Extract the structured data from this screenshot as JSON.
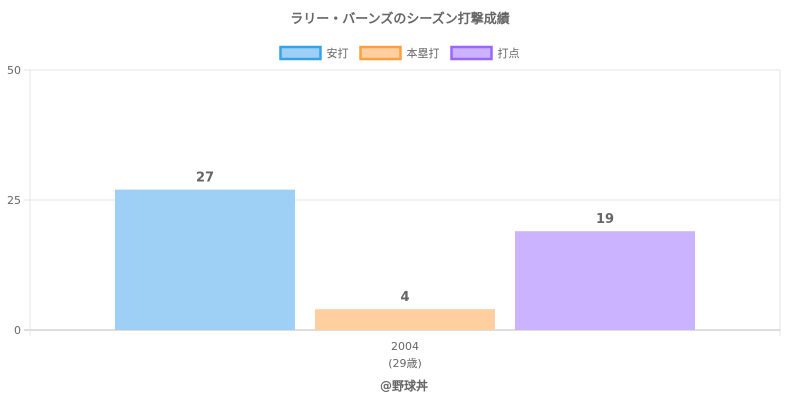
{
  "chart_data": {
    "type": "bar",
    "title": "ラリー・バーンズのシーズン打撃成績",
    "categories": [
      "2004"
    ],
    "category_sublabels": [
      "(29歳)"
    ],
    "ylim": [
      0,
      50
    ],
    "yticks": [
      0,
      25,
      50
    ],
    "grid": true,
    "legend_position": "top",
    "series": [
      {
        "name": "安打",
        "values": [
          27
        ],
        "fill": "#9ed0f5",
        "border": "#36a2eb"
      },
      {
        "name": "本塁打",
        "values": [
          4
        ],
        "fill": "#ffcf9f",
        "border": "#ff9f40"
      },
      {
        "name": "打点",
        "values": [
          19
        ],
        "fill": "#ccb3ff",
        "border": "#9966ff"
      }
    ]
  },
  "footer": "@野球丼"
}
